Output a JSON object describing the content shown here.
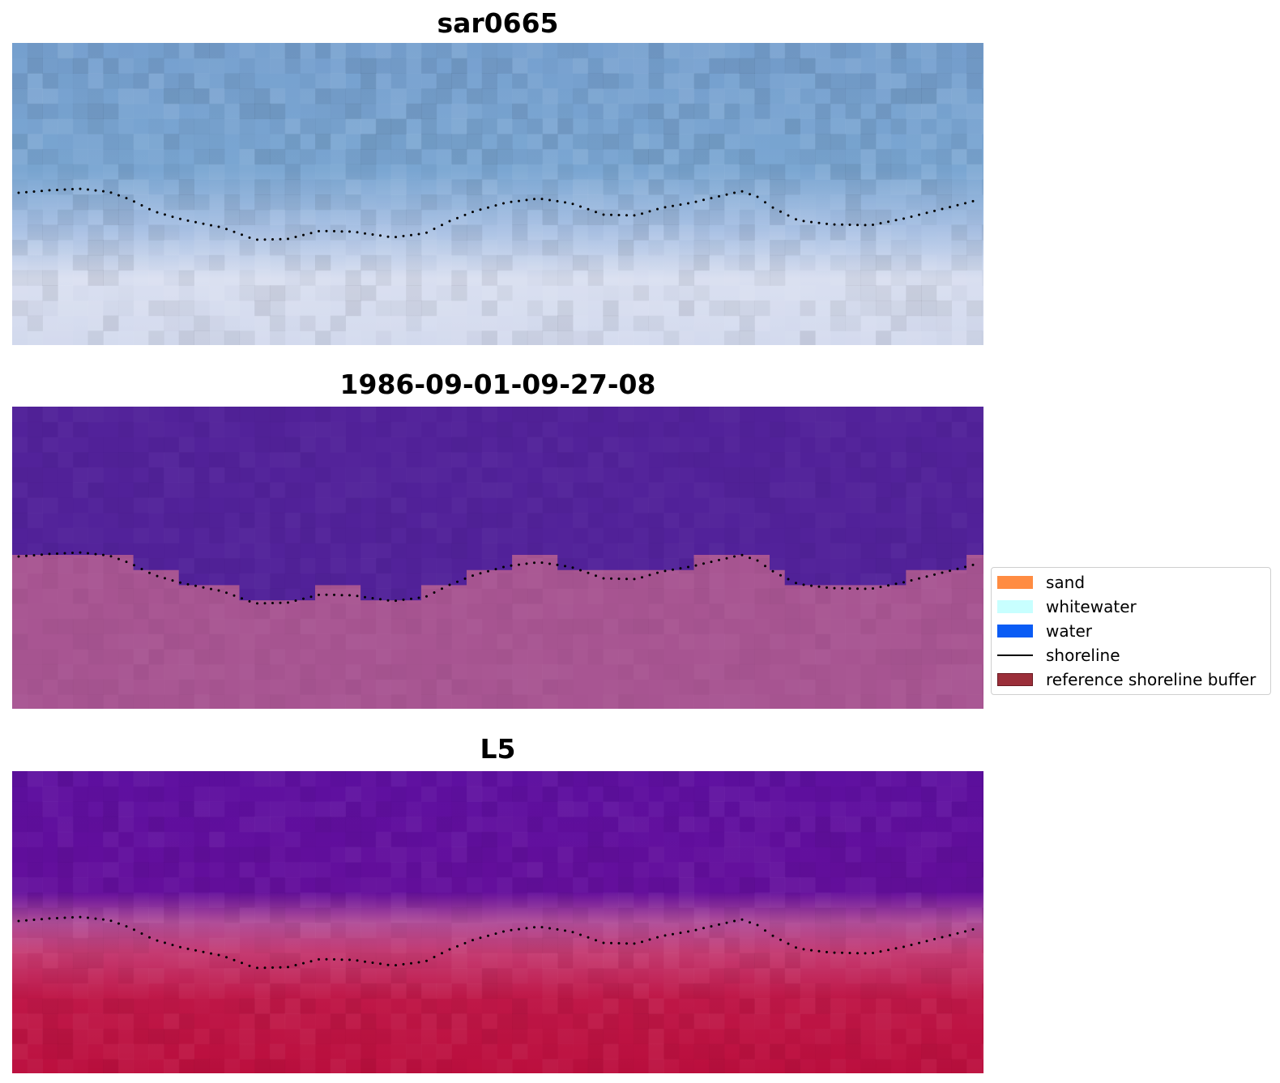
{
  "panels": [
    {
      "title": "sar0665",
      "kind": "rgb"
    },
    {
      "title": "1986-09-01-09-27-08",
      "kind": "classified"
    },
    {
      "title": "L5",
      "kind": "index"
    }
  ],
  "legend": {
    "items": [
      {
        "label": "sand",
        "color": "#ff8c42",
        "type": "patch"
      },
      {
        "label": "whitewater",
        "color": "#c8ffff",
        "type": "patch"
      },
      {
        "label": "water",
        "color": "#0a5cf5",
        "type": "patch"
      },
      {
        "label": "shoreline",
        "color": "#000000",
        "type": "line"
      },
      {
        "label": "reference shoreline buffer",
        "color": "#9b2f3a",
        "type": "patch"
      }
    ]
  },
  "colors": {
    "water_rgb": "#7aa3cf",
    "sand_rgb": "#dcdff0",
    "classified_water": "#52229a",
    "classified_land": "#a85592",
    "index_water": "#5e0f9a",
    "index_transition": "#c45a94",
    "index_land": "#bd1140",
    "shoreline_dots": "#000000"
  }
}
